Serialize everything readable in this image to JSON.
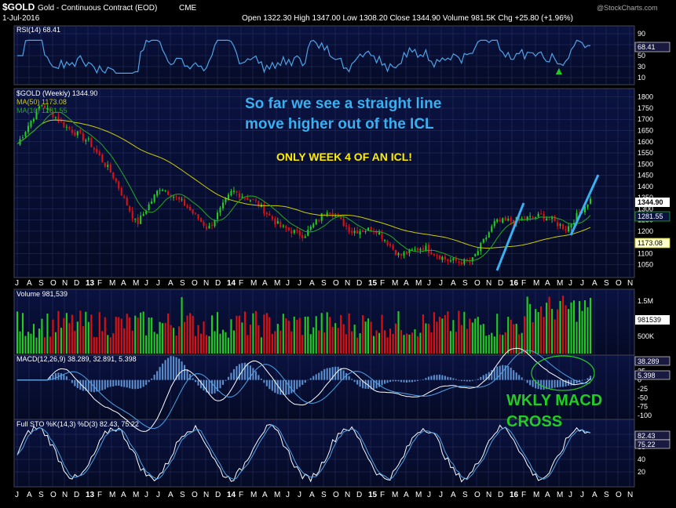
{
  "header": {
    "symbol": "$GOLD",
    "description": "Gold - Continuous Contract (EOD)",
    "exchange": "CME",
    "date": "1-Jul-2016",
    "ohlc": "Open 1322.30  High 1347.00  Low 1308.20  Close 1344.90  Volume 981.5K  Chg +25.80 (+1.96%)",
    "brand": "@StockCharts.com",
    "up_arrow": "▲"
  },
  "colors": {
    "up": "#22cc22",
    "down": "#dd1111",
    "ma50": "#cccc00",
    "ma10": "#22aa22",
    "indicator": "#4fa3e6",
    "annotation_blue": "#3ab0f0",
    "annotation_yellow": "#ffee00",
    "annotation_green": "#22cc22"
  },
  "rsi": {
    "label": "RSI(14) 68.41",
    "current": "68.41",
    "ticks": [
      "90",
      "70",
      "50",
      "30",
      "10"
    ]
  },
  "price": {
    "label": "$GOLD (Weekly) 1344.90",
    "ma50_label": "MA(50) 1173.08",
    "ma10_label": "MA(10) 1281.55",
    "last": "1344.90",
    "ma10_value": "1281.55",
    "ma50_value": "1173.08",
    "ticks": [
      "1800",
      "1750",
      "1700",
      "1650",
      "1600",
      "1550",
      "1500",
      "1450",
      "1400",
      "1350",
      "1300",
      "1250",
      "1200",
      "1150",
      "1100",
      "1050"
    ]
  },
  "annotations": {
    "line1": "So far we see a straight line",
    "line2": "move higher out of the ICL",
    "week": "ONLY WEEK 4 OF AN ICL!",
    "macd1": "WKLY MACD",
    "macd2": "CROSS"
  },
  "months": [
    "J",
    "A",
    "S",
    "O",
    "N",
    "D",
    "13",
    "F",
    "M",
    "A",
    "M",
    "J",
    "J",
    "A",
    "S",
    "O",
    "N",
    "D",
    "14",
    "F",
    "M",
    "A",
    "M",
    "J",
    "J",
    "A",
    "S",
    "O",
    "N",
    "D",
    "15",
    "F",
    "M",
    "A",
    "M",
    "J",
    "J",
    "A",
    "S",
    "O",
    "N",
    "D",
    "16",
    "F",
    "M",
    "A",
    "M",
    "J",
    "J",
    "A",
    "S",
    "O",
    "N"
  ],
  "volume": {
    "label": "Volume 981,539",
    "current": "981539",
    "ticks": [
      "1.5M",
      "1M",
      "500K"
    ]
  },
  "macd": {
    "label": "MACD(12,26,9) 38.289, 32.891, 5.398",
    "macd_value": "38.289",
    "hist_value": "5.398",
    "ticks": [
      "50",
      "25",
      "0",
      "-25",
      "-50",
      "-75",
      "-100"
    ]
  },
  "sto": {
    "label": "Full STO %K(14,3) %D(3) 82.43, 75.22",
    "k_value": "82.43",
    "d_value": "75.22",
    "ticks": [
      "80",
      "60",
      "40",
      "20"
    ]
  },
  "chart_data": {
    "type": "line",
    "title": "$GOLD Gold - Continuous Contract (EOD) CME, Weekly",
    "x_range": [
      "Jul 2012",
      "Jul 2016"
    ],
    "xlabel": "",
    "ylabel": "",
    "ylim": [
      1000,
      1820
    ],
    "grid": true,
    "legend": "top-left",
    "series": [
      {
        "name": "$GOLD (Weekly)",
        "x": [
          "2012-07",
          "2012-10",
          "2013-01",
          "2013-03",
          "2013-04",
          "2013-06",
          "2013-08",
          "2013-10",
          "2013-12",
          "2014-03",
          "2014-06",
          "2014-09",
          "2014-11",
          "2015-01",
          "2015-03",
          "2015-05",
          "2015-07",
          "2015-09",
          "2015-11",
          "2015-12",
          "2016-02",
          "2016-04",
          "2016-05",
          "2016-06",
          "2016-07"
        ],
        "values": [
          1590,
          1770,
          1670,
          1600,
          1450,
          1230,
          1400,
          1320,
          1210,
          1380,
          1330,
          1220,
          1180,
          1300,
          1200,
          1210,
          1090,
          1130,
          1070,
          1060,
          1240,
          1250,
          1270,
          1210,
          1345
        ]
      },
      {
        "name": "MA(50)",
        "last": 1173.08
      },
      {
        "name": "MA(10)",
        "last": 1281.55
      }
    ],
    "indicators": [
      {
        "name": "RSI(14)",
        "last": 68.41,
        "ylim": [
          0,
          100
        ]
      },
      {
        "name": "Volume",
        "last": 981539
      },
      {
        "name": "MACD(12,26,9)",
        "values": [
          38.289,
          32.891,
          5.398
        ],
        "ylim": [
          -110,
          60
        ]
      },
      {
        "name": "Full STO %K(14,3) %D(3)",
        "values": [
          82.43,
          75.22
        ],
        "ylim": [
          0,
          100
        ]
      }
    ]
  }
}
